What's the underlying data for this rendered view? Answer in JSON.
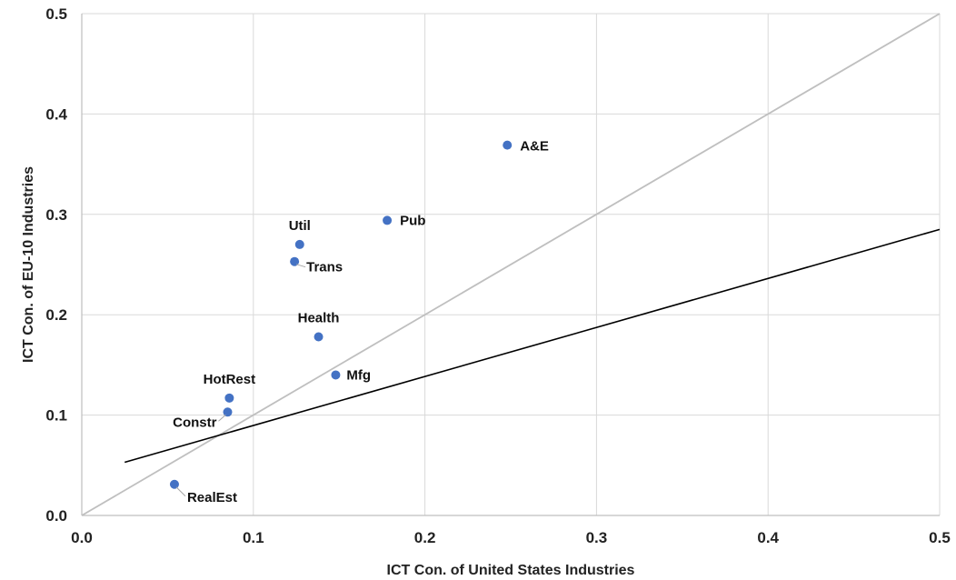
{
  "chart_data": {
    "type": "scatter",
    "title": "",
    "xlabel": "ICT Con. of United States Industries",
    "ylabel": "ICT Con. of  EU-10 Industries",
    "xlim": [
      0,
      0.5
    ],
    "ylim": [
      0,
      0.5
    ],
    "x_ticks": [
      "0.0",
      "0.1",
      "0.2",
      "0.3",
      "0.4",
      "0.5"
    ],
    "y_ticks": [
      "0.0",
      "0.1",
      "0.2",
      "0.3",
      "0.4",
      "0.5"
    ],
    "grid": true,
    "legend": "none",
    "marker_color": "#4472C4",
    "points": [
      {
        "label": "A&E",
        "x": 0.248,
        "y": 0.369
      },
      {
        "label": "Pub",
        "x": 0.178,
        "y": 0.294
      },
      {
        "label": "Util",
        "x": 0.127,
        "y": 0.27
      },
      {
        "label": "Trans",
        "x": 0.124,
        "y": 0.253
      },
      {
        "label": "Health",
        "x": 0.138,
        "y": 0.178
      },
      {
        "label": "Mfg",
        "x": 0.148,
        "y": 0.14
      },
      {
        "label": "HotRest",
        "x": 0.086,
        "y": 0.117
      },
      {
        "label": "Constr",
        "x": 0.085,
        "y": 0.103
      },
      {
        "label": "RealEst",
        "x": 0.054,
        "y": 0.031
      }
    ],
    "reference_lines": [
      {
        "kind": "identity",
        "color": "#bfbfbf",
        "x": [
          0,
          0.5
        ],
        "y": [
          0,
          0.5
        ]
      },
      {
        "kind": "fit",
        "color": "#000000",
        "x": [
          0.025,
          0.5
        ],
        "y": [
          0.053,
          0.285
        ]
      }
    ]
  }
}
